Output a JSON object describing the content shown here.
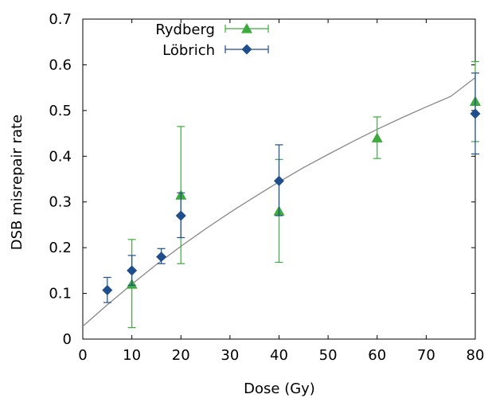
{
  "chart_data": {
    "type": "scatter",
    "xlabel": "Dose (Gy)",
    "ylabel": "DSB misrepair rate",
    "xlim": [
      0,
      80
    ],
    "ylim": [
      0,
      0.7
    ],
    "x_ticks": [
      "0",
      "10",
      "20",
      "30",
      "40",
      "50",
      "60",
      "70",
      "80"
    ],
    "y_ticks": [
      "0",
      "0.1",
      "0.2",
      "0.3",
      "0.4",
      "0.5",
      "0.6",
      "0.7"
    ],
    "grid": false,
    "legend_position": "top-left",
    "series": [
      {
        "name": "Rydberg",
        "marker": "triangle",
        "color": "#3daa3d",
        "points": [
          {
            "x": 10,
            "y": 0.12,
            "err_low": 0.025,
            "err_high": 0.218
          },
          {
            "x": 20,
            "y": 0.315,
            "err_low": 0.165,
            "err_high": 0.465
          },
          {
            "x": 40,
            "y": 0.28,
            "err_low": 0.168,
            "err_high": 0.393
          },
          {
            "x": 60,
            "y": 0.44,
            "err_low": 0.395,
            "err_high": 0.486
          },
          {
            "x": 80,
            "y": 0.52,
            "err_low": 0.432,
            "err_high": 0.607
          }
        ]
      },
      {
        "name": "Löbrich",
        "marker": "diamond",
        "color": "#1f4e8c",
        "points": [
          {
            "x": 5,
            "y": 0.107,
            "err_low": 0.08,
            "err_high": 0.135
          },
          {
            "x": 10,
            "y": 0.15,
            "err_low": 0.118,
            "err_high": 0.183
          },
          {
            "x": 16,
            "y": 0.18,
            "err_low": 0.165,
            "err_high": 0.198
          },
          {
            "x": 20,
            "y": 0.27,
            "err_low": 0.222,
            "err_high": 0.32
          },
          {
            "x": 40,
            "y": 0.346,
            "err_low": 0.27,
            "err_high": 0.425
          },
          {
            "x": 80,
            "y": 0.493,
            "err_low": 0.405,
            "err_high": 0.582
          }
        ]
      }
    ],
    "fit_curve": {
      "color": "#888888",
      "x": [
        0,
        5,
        10,
        15,
        20,
        25,
        30,
        35,
        40,
        45,
        50,
        55,
        60,
        65,
        70,
        75,
        80
      ],
      "y": [
        0.028,
        0.075,
        0.12,
        0.163,
        0.203,
        0.241,
        0.277,
        0.311,
        0.344,
        0.375,
        0.404,
        0.432,
        0.459,
        0.484,
        0.508,
        0.531,
        0.572
      ]
    }
  }
}
